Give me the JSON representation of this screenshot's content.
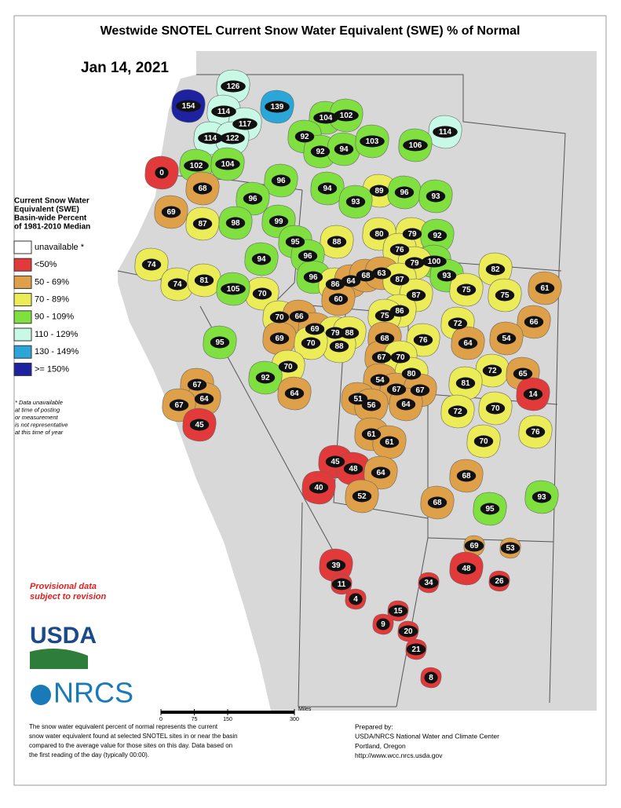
{
  "map": {
    "title": "Westwide SNOTEL Current Snow Water Equivalent (SWE) % of Normal",
    "date": "Jan 14, 2021",
    "legend": {
      "title": [
        "Current Snow Water",
        "Equivalent (SWE)",
        "Basin-wide Percent",
        "of 1981-2010 Median"
      ],
      "items": [
        {
          "label": "unavailable *",
          "color": "#ffffff"
        },
        {
          "label": "<50%",
          "color": "#e23a3a"
        },
        {
          "label": "50 - 69%",
          "color": "#dea048"
        },
        {
          "label": "70 - 89%",
          "color": "#ecec58"
        },
        {
          "label": "90 - 109%",
          "color": "#7fe040"
        },
        {
          "label": "110 - 129%",
          "color": "#c8f8e6"
        },
        {
          "label": "130 - 149%",
          "color": "#2aa6d8"
        },
        {
          "label": ">= 150%",
          "color": "#1c22a0"
        }
      ]
    },
    "note": [
      "* Data unavailable",
      "at time of posting",
      "or measurement",
      "is not representative",
      "at this time of year"
    ],
    "provisional": [
      "Provisional data",
      "subject to revision"
    ],
    "logos": [
      "USDA",
      "NRCS"
    ],
    "scale_bar": {
      "unit": "Miles",
      "ticks": [
        0,
        75,
        150,
        300
      ]
    },
    "footnote": [
      "The snow water equivalent percent of normal represents the current",
      "snow water equivalent found at selected SNOTEL sites in or near the basin",
      "compared to the average value for those sites on this day. Data based on",
      "the first reading of the day (typically 00:00)."
    ],
    "prepared_by": [
      "Prepared by:",
      "USDA/NRCS National Water and Climate Center",
      "Portland, Oregon",
      "http://www.wcc.nrcs.usda.gov"
    ],
    "basins": [
      {
        "value": 126,
        "color": "#c8f8e6"
      },
      {
        "value": 154,
        "color": "#1c22a0"
      },
      {
        "value": 114,
        "color": "#c8f8e6"
      },
      {
        "value": 139,
        "color": "#2aa6d8"
      },
      {
        "value": 117,
        "color": "#c8f8e6"
      },
      {
        "value": 104,
        "color": "#7fe040"
      },
      {
        "value": 102,
        "color": "#7fe040"
      },
      {
        "value": 114,
        "color": "#c8f8e6"
      },
      {
        "value": 114,
        "color": "#c8f8e6"
      },
      {
        "value": 122,
        "color": "#c8f8e6"
      },
      {
        "value": 92,
        "color": "#7fe040"
      },
      {
        "value": 92,
        "color": "#7fe040"
      },
      {
        "value": 94,
        "color": "#7fe040"
      },
      {
        "value": 103,
        "color": "#7fe040"
      },
      {
        "value": 106,
        "color": "#7fe040"
      },
      {
        "value": 0,
        "color": "#e23a3a"
      },
      {
        "value": 102,
        "color": "#7fe040"
      },
      {
        "value": 104,
        "color": "#7fe040"
      },
      {
        "value": 96,
        "color": "#7fe040"
      },
      {
        "value": 68,
        "color": "#dea048"
      },
      {
        "value": 94,
        "color": "#7fe040"
      },
      {
        "value": 89,
        "color": "#ecec58"
      },
      {
        "value": 96,
        "color": "#7fe040"
      },
      {
        "value": 93,
        "color": "#7fe040"
      },
      {
        "value": 69,
        "color": "#dea048"
      },
      {
        "value": 96,
        "color": "#7fe040"
      },
      {
        "value": 93,
        "color": "#7fe040"
      },
      {
        "value": 87,
        "color": "#ecec58"
      },
      {
        "value": 98,
        "color": "#7fe040"
      },
      {
        "value": 99,
        "color": "#7fe040"
      },
      {
        "value": 79,
        "color": "#ecec58"
      },
      {
        "value": 92,
        "color": "#7fe040"
      },
      {
        "value": 88,
        "color": "#ecec58"
      },
      {
        "value": 80,
        "color": "#ecec58"
      },
      {
        "value": 95,
        "color": "#7fe040"
      },
      {
        "value": 96,
        "color": "#7fe040"
      },
      {
        "value": 94,
        "color": "#7fe040"
      },
      {
        "value": 76,
        "color": "#ecec58"
      },
      {
        "value": 74,
        "color": "#ecec58"
      },
      {
        "value": 100,
        "color": "#7fe040"
      },
      {
        "value": 79,
        "color": "#ecec58"
      },
      {
        "value": 82,
        "color": "#ecec58"
      },
      {
        "value": 93,
        "color": "#7fe040"
      },
      {
        "value": 74,
        "color": "#ecec58"
      },
      {
        "value": 81,
        "color": "#ecec58"
      },
      {
        "value": 96,
        "color": "#7fe040"
      },
      {
        "value": 86,
        "color": "#ecec58"
      },
      {
        "value": 64,
        "color": "#dea048"
      },
      {
        "value": 68,
        "color": "#dea048"
      },
      {
        "value": 63,
        "color": "#dea048"
      },
      {
        "value": 87,
        "color": "#ecec58"
      },
      {
        "value": 70,
        "color": "#ecec58"
      },
      {
        "value": 105,
        "color": "#7fe040"
      },
      {
        "value": 60,
        "color": "#dea048"
      },
      {
        "value": 75,
        "color": "#ecec58"
      },
      {
        "value": 75,
        "color": "#ecec58"
      },
      {
        "value": 61,
        "color": "#dea048"
      },
      {
        "value": 87,
        "color": "#ecec58"
      },
      {
        "value": 86,
        "color": "#ecec58"
      },
      {
        "value": 75,
        "color": "#ecec58"
      },
      {
        "value": 70,
        "color": "#ecec58"
      },
      {
        "value": 66,
        "color": "#dea048"
      },
      {
        "value": 69,
        "color": "#dea048"
      },
      {
        "value": 79,
        "color": "#ecec58"
      },
      {
        "value": 88,
        "color": "#ecec58"
      },
      {
        "value": 88,
        "color": "#ecec58"
      },
      {
        "value": 95,
        "color": "#7fe040"
      },
      {
        "value": 69,
        "color": "#dea048"
      },
      {
        "value": 70,
        "color": "#ecec58"
      },
      {
        "value": 72,
        "color": "#ecec58"
      },
      {
        "value": 66,
        "color": "#dea048"
      },
      {
        "value": 68,
        "color": "#dea048"
      },
      {
        "value": 76,
        "color": "#ecec58"
      },
      {
        "value": 64,
        "color": "#dea048"
      },
      {
        "value": 54,
        "color": "#dea048"
      },
      {
        "value": 67,
        "color": "#dea048"
      },
      {
        "value": 70,
        "color": "#ecec58"
      },
      {
        "value": 70,
        "color": "#ecec58"
      },
      {
        "value": 92,
        "color": "#7fe040"
      },
      {
        "value": 80,
        "color": "#ecec58"
      },
      {
        "value": 72,
        "color": "#ecec58"
      },
      {
        "value": 65,
        "color": "#dea048"
      },
      {
        "value": 54,
        "color": "#dea048"
      },
      {
        "value": 81,
        "color": "#ecec58"
      },
      {
        "value": 67,
        "color": "#dea048"
      },
      {
        "value": 67,
        "color": "#dea048"
      },
      {
        "value": 67,
        "color": "#dea048"
      },
      {
        "value": 14,
        "color": "#e23a3a"
      },
      {
        "value": 64,
        "color": "#dea048"
      },
      {
        "value": 64,
        "color": "#dea048"
      },
      {
        "value": 51,
        "color": "#dea048"
      },
      {
        "value": 56,
        "color": "#dea048"
      },
      {
        "value": 64,
        "color": "#dea048"
      },
      {
        "value": 67,
        "color": "#dea048"
      },
      {
        "value": 72,
        "color": "#ecec58"
      },
      {
        "value": 70,
        "color": "#ecec58"
      },
      {
        "value": 76,
        "color": "#ecec58"
      },
      {
        "value": 45,
        "color": "#e23a3a"
      },
      {
        "value": 61,
        "color": "#dea048"
      },
      {
        "value": 61,
        "color": "#dea048"
      },
      {
        "value": 70,
        "color": "#ecec58"
      },
      {
        "value": 45,
        "color": "#e23a3a"
      },
      {
        "value": 48,
        "color": "#e23a3a"
      },
      {
        "value": 64,
        "color": "#dea048"
      },
      {
        "value": 68,
        "color": "#dea048"
      },
      {
        "value": 40,
        "color": "#e23a3a"
      },
      {
        "value": 52,
        "color": "#dea048"
      },
      {
        "value": 93,
        "color": "#7fe040"
      },
      {
        "value": 68,
        "color": "#dea048"
      },
      {
        "value": 95,
        "color": "#7fe040"
      },
      {
        "value": 69,
        "color": "#dea048"
      },
      {
        "value": 53,
        "color": "#dea048"
      },
      {
        "value": 39,
        "color": "#e23a3a"
      },
      {
        "value": 48,
        "color": "#e23a3a"
      },
      {
        "value": 11,
        "color": "#e23a3a"
      },
      {
        "value": 34,
        "color": "#e23a3a"
      },
      {
        "value": 26,
        "color": "#e23a3a"
      },
      {
        "value": 4,
        "color": "#e23a3a"
      },
      {
        "value": 15,
        "color": "#e23a3a"
      },
      {
        "value": 9,
        "color": "#e23a3a"
      },
      {
        "value": 20,
        "color": "#e23a3a"
      },
      {
        "value": 21,
        "color": "#e23a3a"
      },
      {
        "value": 8,
        "color": "#e23a3a"
      }
    ]
  }
}
